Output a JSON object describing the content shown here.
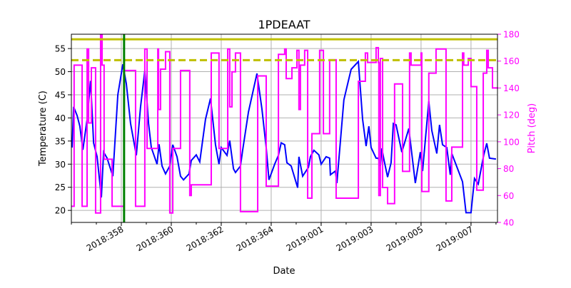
{
  "chart_data": {
    "type": "line",
    "title": "1PDEAAT",
    "xlabel": "Date",
    "ylabel": "Temperature (C)",
    "y2label": "Pitch (deg)",
    "xlim": [
      "2018:356.00",
      "2019:008.06"
    ],
    "ylim": [
      17.4,
      58.1
    ],
    "y2lim": [
      40,
      180
    ],
    "grid": true,
    "x_ticks": [
      "2018:358",
      "2018:360",
      "2018:362",
      "2018:364",
      "2019:001",
      "2019:003",
      "2019:005",
      "2019:007"
    ],
    "y_ticks": [
      "20",
      "25",
      "30",
      "35",
      "40",
      "45",
      "50",
      "55"
    ],
    "y2_ticks": [
      "40",
      "60",
      "80",
      "100",
      "120",
      "140",
      "160",
      "180"
    ],
    "colors": {
      "temperature": "#0000ff",
      "pitch": "#ff00ff",
      "limit": "#bfbf00",
      "marker": "#008000",
      "y2axis": "#ff00ff"
    },
    "reference_lines": [
      {
        "axis": "y",
        "value": 57.0,
        "style": "solid",
        "color": "#bfbf00"
      },
      {
        "axis": "y",
        "value": 52.5,
        "style": "dashed",
        "color": "#bfbf00"
      },
      {
        "axis": "x",
        "value": "2018:358.11",
        "style": "solid",
        "color": "#008000"
      }
    ],
    "series": [
      {
        "axis": "left",
        "color": "#0000ff",
        "x": [
          "2018:356.03",
          "2018:356.09",
          "2018:356.23",
          "2018:356.34",
          "2018:356.46",
          "2018:356.63",
          "2018:356.77",
          "2018:356.89",
          "2018:357.03",
          "2018:357.20",
          "2018:357.29",
          "2018:357.43",
          "2018:357.66",
          "2018:357.86",
          "2018:358.06",
          "2018:358.20",
          "2018:358.37",
          "2018:358.60",
          "2018:358.77",
          "2018:358.94",
          "2018:359.09",
          "2018:359.20",
          "2018:359.43",
          "2018:359.51",
          "2018:359.63",
          "2018:359.77",
          "2018:359.94",
          "2018:360.06",
          "2018:360.23",
          "2018:360.37",
          "2018:360.49",
          "2018:360.71",
          "2018:360.80",
          "2018:361.00",
          "2018:361.14",
          "2018:361.37",
          "2018:361.57",
          "2018:361.77",
          "2018:361.91",
          "2018:362.00",
          "2018:362.23",
          "2018:362.34",
          "2018:362.49",
          "2018:362.57",
          "2018:362.77",
          "2018:362.86",
          "2018:363.09",
          "2018:363.43",
          "2018:363.63",
          "2018:363.80",
          "2018:363.91",
          "2018:364.14",
          "2018:364.29",
          "2018:364.40",
          "2018:364.54",
          "2018:364.63",
          "2018:364.80",
          "2018:365.06",
          "2018:365.11",
          "2018:365.26",
          "2018:365.49",
          "2018:365.57",
          "2018:365.71",
          "2018:365.91",
          "2019:001.00",
          "2019:001.20",
          "2019:001.34",
          "2019:001.37",
          "2019:001.57",
          "2019:001.63",
          "2019:001.91",
          "2019:002.20",
          "2019:002.49",
          "2019:002.54",
          "2019:002.66",
          "2019:002.80",
          "2019:002.91",
          "2019:003.00",
          "2019:003.20",
          "2019:003.29",
          "2019:003.37",
          "2019:003.43",
          "2019:003.51",
          "2019:003.66",
          "2019:003.80",
          "2019:003.89",
          "2019:004.00",
          "2019:004.23",
          "2019:004.51",
          "2019:004.77",
          "2019:004.97",
          "2019:005.06",
          "2019:005.31",
          "2019:005.43",
          "2019:005.63",
          "2019:005.74",
          "2019:005.86",
          "2019:006.03",
          "2019:006.17",
          "2019:006.23",
          "2019:006.66",
          "2019:006.80",
          "2019:007.00",
          "2019:007.14",
          "2019:007.29",
          "2019:007.51",
          "2019:007.63",
          "2019:007.74",
          "2019:008.00"
        ],
        "y": [
          33.6,
          42.4,
          40.5,
          38.2,
          33.1,
          39.7,
          48.0,
          34.6,
          31.6,
          22.8,
          32.6,
          31.3,
          27.4,
          45.0,
          51.6,
          47.4,
          38.8,
          31.9,
          42.4,
          50.2,
          38.8,
          33.6,
          30.0,
          34.3,
          29.6,
          27.9,
          29.6,
          34.2,
          31.6,
          27.4,
          26.6,
          27.9,
          30.8,
          32.0,
          30.5,
          39.7,
          44.2,
          34.2,
          30.0,
          33.6,
          31.9,
          35.1,
          29.0,
          28.2,
          29.6,
          33.1,
          41.3,
          49.6,
          41.9,
          33.6,
          26.6,
          30.0,
          31.9,
          34.6,
          34.2,
          30.3,
          29.6,
          24.9,
          31.6,
          27.4,
          29.3,
          31.6,
          33.0,
          32.0,
          30.0,
          31.6,
          31.3,
          27.7,
          28.5,
          25.9,
          43.9,
          50.5,
          52.2,
          48.5,
          39.7,
          33.9,
          38.2,
          33.6,
          31.3,
          31.3,
          29.6,
          33.4,
          31.1,
          27.2,
          30.3,
          38.8,
          38.5,
          32.6,
          37.7,
          25.9,
          32.6,
          28.5,
          43.6,
          37.3,
          32.3,
          38.5,
          34.2,
          33.6,
          27.7,
          32.3,
          26.2,
          19.5,
          19.5,
          26.9,
          25.7,
          32.0,
          34.5,
          31.3,
          31.1
        ]
      },
      {
        "axis": "right",
        "color": "#ff00ff",
        "drawstyle": "steps-post",
        "x": [
          "2018:356.00",
          "2018:356.11",
          "2018:356.43",
          "2018:356.63",
          "2018:356.69",
          "2018:356.80",
          "2018:356.97",
          "2018:357.17",
          "2018:357.23",
          "2018:357.31",
          "2018:357.63",
          "2018:358.11",
          "2018:358.57",
          "2018:358.94",
          "2018:359.03",
          "2018:359.46",
          "2018:359.49",
          "2018:359.57",
          "2018:359.77",
          "2018:359.94",
          "2018:360.06",
          "2018:360.37",
          "2018:360.74",
          "2018:360.80",
          "2018:361.60",
          "2018:361.91",
          "2018:362.26",
          "2018:362.34",
          "2018:362.43",
          "2018:362.57",
          "2018:362.77",
          "2018:363.46",
          "2018:363.80",
          "2018:364.29",
          "2018:364.54",
          "2018:364.60",
          "2018:364.83",
          "2018:365.03",
          "2018:365.11",
          "2018:365.17",
          "2018:365.34",
          "2018:365.46",
          "2018:365.63",
          "2018:365.94",
          "2019:001.09",
          "2019:001.34",
          "2019:001.60",
          "2019:002.49",
          "2019:002.77",
          "2019:002.86",
          "2019:003.20",
          "2019:003.29",
          "2019:003.31",
          "2019:003.37",
          "2019:003.46",
          "2019:003.66",
          "2019:003.94",
          "2019:004.26",
          "2019:004.54",
          "2019:004.60",
          "2019:005.00",
          "2019:005.03",
          "2019:005.31",
          "2019:005.60",
          "2019:006.00",
          "2019:006.23",
          "2019:006.66",
          "2019:006.71",
          "2019:006.89",
          "2019:007.00",
          "2019:007.23",
          "2019:007.49",
          "2019:007.63",
          "2019:007.69",
          "2019:007.86",
          "2019:008.06"
        ],
        "y": [
          52,
          157,
          52,
          169,
          114,
          155,
          47,
          180,
          157,
          87,
          52,
          153,
          52,
          169,
          95,
          169,
          124,
          154,
          167,
          47,
          95,
          153,
          60,
          68,
          166,
          95,
          169,
          126,
          152,
          166,
          48,
          149,
          67,
          165,
          169,
          147,
          155,
          168,
          124,
          157,
          168,
          58,
          106,
          168,
          106,
          161,
          58,
          145,
          166,
          159,
          170,
          159,
          60,
          162,
          66,
          54,
          143,
          78,
          166,
          157,
          166,
          63,
          151,
          169,
          56,
          96,
          166,
          157,
          162,
          141,
          64,
          151,
          168,
          155,
          140,
          140
        ]
      }
    ]
  }
}
